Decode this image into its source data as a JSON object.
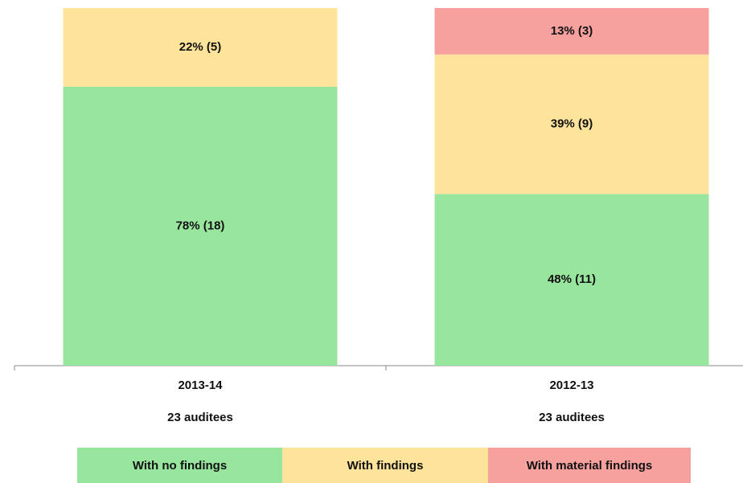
{
  "chart_data": {
    "type": "stacked-bar",
    "categories": [
      "2013-14",
      "2012-13"
    ],
    "category_sublabels": [
      "23 auditees",
      "23 auditees"
    ],
    "ylim": [
      0,
      100
    ],
    "series": [
      {
        "name": "With no findings",
        "color": "#98e59e",
        "values": [
          78,
          48
        ],
        "value_labels": [
          "78% (18)",
          "48% (11)"
        ]
      },
      {
        "name": "With findings",
        "color": "#fee49a",
        "values": [
          22,
          39
        ],
        "value_labels": [
          "22% (5)",
          "39% (9)"
        ]
      },
      {
        "name": "With material findings",
        "color": "#f7a19f",
        "values": [
          null,
          13
        ],
        "value_labels": [
          null,
          "13% (3)"
        ]
      }
    ]
  }
}
